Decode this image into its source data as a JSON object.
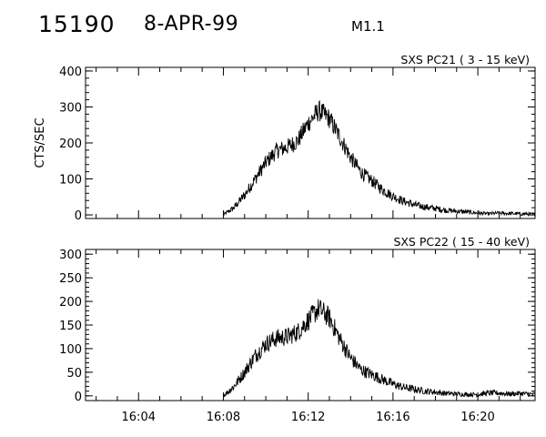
{
  "header": {
    "event_id": "15190",
    "date": "8-APR-99",
    "flare_class": "M1.1"
  },
  "chart_data": [
    {
      "type": "line",
      "title": "SXS PC21  (  3 - 15 keV)",
      "ylabel": "CTS/SEC",
      "ylim": [
        -10,
        410
      ],
      "yticks": [
        0,
        100,
        200,
        300,
        400
      ],
      "xlim": [
        "16:01.5",
        "16:22.7"
      ],
      "xticks": [
        "16:04",
        "16:08",
        "16:12",
        "16:16",
        "16:20"
      ],
      "x_units": "minutes of day (UT)",
      "series": [
        {
          "x": [
            "16:08.0",
            "16:08.5",
            "16:09.0",
            "16:09.5",
            "16:10.0",
            "16:10.5",
            "16:11.0",
            "16:11.5",
            "16:12.0",
            "16:12.5",
            "16:13.0",
            "16:13.5",
            "16:14.0",
            "16:14.5",
            "16:15.0",
            "16:15.5",
            "16:16.0",
            "16:16.5",
            "16:17.0",
            "16:17.5",
            "16:18.0",
            "16:18.5",
            "16:19.0",
            "16:19.5",
            "16:20.0",
            "16:20.5",
            "16:21.0",
            "16:21.5",
            "16:22.0",
            "16:22.7"
          ],
          "values": [
            0,
            20,
            55,
            100,
            145,
            178,
            188,
            205,
            255,
            290,
            268,
            215,
            160,
            118,
            95,
            70,
            52,
            38,
            28,
            22,
            18,
            13,
            10,
            8,
            5,
            3,
            5,
            4,
            3,
            2
          ]
        }
      ]
    },
    {
      "type": "line",
      "title": "SXS PC22  ( 15 - 40 keV)",
      "ylabel": "",
      "ylim": [
        -10,
        310
      ],
      "yticks": [
        0,
        50,
        100,
        150,
        200,
        250,
        300
      ],
      "xlim": [
        "16:01.5",
        "16:22.7"
      ],
      "xticks": [
        "16:04",
        "16:08",
        "16:12",
        "16:16",
        "16:20"
      ],
      "x_units": "minutes of day (UT)",
      "series": [
        {
          "x": [
            "16:08.0",
            "16:08.5",
            "16:09.0",
            "16:09.5",
            "16:10.0",
            "16:10.5",
            "16:11.0",
            "16:11.5",
            "16:12.0",
            "16:12.5",
            "16:13.0",
            "16:13.5",
            "16:14.0",
            "16:14.5",
            "16:15.0",
            "16:15.5",
            "16:16.0",
            "16:16.5",
            "16:17.0",
            "16:17.5",
            "16:18.0",
            "16:18.5",
            "16:19.0",
            "16:19.5",
            "16:20.0",
            "16:20.5",
            "16:21.0",
            "16:21.5",
            "16:22.0",
            "16:22.7"
          ],
          "values": [
            0,
            20,
            50,
            85,
            110,
            122,
            125,
            135,
            160,
            185,
            165,
            120,
            80,
            55,
            45,
            35,
            25,
            18,
            14,
            10,
            8,
            5,
            4,
            3,
            3,
            6,
            6,
            4,
            5,
            3
          ]
        }
      ]
    }
  ]
}
